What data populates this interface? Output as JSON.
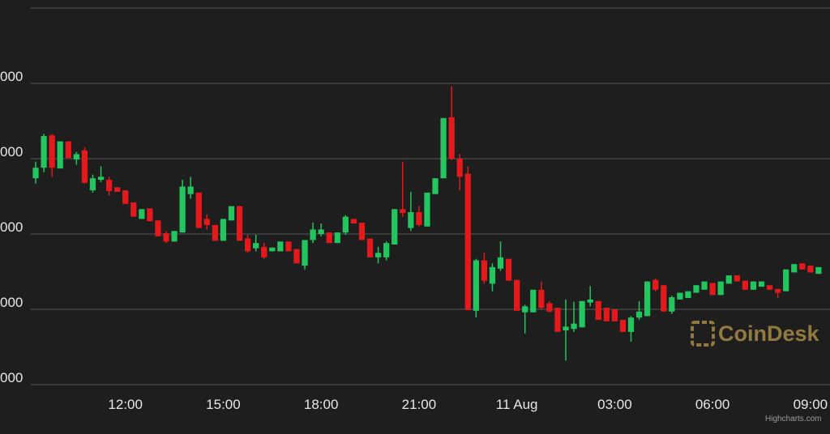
{
  "chart_data": {
    "type": "candlestick",
    "x": [
      9.25,
      9.5,
      9.75,
      10,
      10.25,
      10.5,
      10.75,
      11,
      11.25,
      11.5,
      11.75,
      12,
      12.25,
      12.5,
      12.75,
      13,
      13.25,
      13.5,
      13.75,
      14,
      14.25,
      14.5,
      14.75,
      15,
      15.25,
      15.5,
      15.75,
      16,
      16.25,
      16.5,
      16.75,
      17,
      17.25,
      17.5,
      17.75,
      18,
      18.25,
      18.5,
      18.75,
      19,
      19.25,
      19.5,
      19.75,
      20,
      20.25,
      20.5,
      20.75,
      21,
      21.25,
      21.5,
      21.75,
      22,
      22.25,
      22.5,
      22.75,
      23,
      23.25,
      23.5,
      23.75,
      24,
      24.25,
      24.5,
      24.75,
      25,
      25.25,
      25.5,
      25.75,
      26,
      26.25,
      26.5,
      26.75,
      27,
      27.25,
      27.5,
      27.75,
      28,
      28.25,
      28.5,
      28.75,
      29,
      29.25,
      29.5,
      29.75,
      30,
      30.25,
      30.5,
      30.75,
      31,
      31.25,
      31.5,
      31.75,
      32,
      32.25,
      32.5,
      32.75,
      33,
      33.25
    ],
    "open": [
      29474,
      29488,
      29531,
      29487,
      29523,
      29499,
      29511,
      29458,
      29472,
      29472,
      29462,
      29458,
      29442,
      29420,
      29434,
      29418,
      29401,
      29390,
      29402,
      29453,
      29455,
      29420,
      29412,
      29391,
      29418,
      29437,
      29394,
      29381,
      29383,
      29377,
      29377,
      29390,
      29380,
      29358,
      29392,
      29400,
      29402,
      29388,
      29402,
      29420,
      29415,
      29394,
      29369,
      29369,
      29386,
      29433,
      29408,
      29429,
      29410,
      29453,
      29474,
      29555,
      29500,
      29480,
      29298,
      29365,
      29334,
      29354,
      29367,
      29339,
      29296,
      29296,
      29326,
      29308,
      29302,
      29272,
      29274,
      29276,
      29309,
      29311,
      29302,
      29300,
      29286,
      29270,
      29289,
      29291,
      29339,
      29332,
      29297,
      29313,
      29315,
      29322,
      29326,
      29335,
      29319,
      29334,
      29345,
      29338,
      29326,
      29330,
      29332,
      29327,
      29324,
      29349,
      29361,
      29358,
      29347
    ],
    "high": [
      29496,
      29533,
      29533,
      29523,
      29523,
      29509,
      29515,
      29479,
      29490,
      29476,
      29462,
      29458,
      29442,
      29433,
      29434,
      29418,
      29404,
      29404,
      29472,
      29476,
      29455,
      29426,
      29412,
      29420,
      29437,
      29437,
      29399,
      29399,
      29388,
      29382,
      29390,
      29390,
      29380,
      29392,
      29415,
      29414,
      29402,
      29402,
      29425,
      29420,
      29415,
      29394,
      29383,
      29390,
      29433,
      29496,
      29456,
      29437,
      29455,
      29474,
      29554,
      29596,
      29506,
      29490,
      29367,
      29375,
      29361,
      29390,
      29367,
      29339,
      29306,
      29326,
      29337,
      29311,
      29302,
      29313,
      29310,
      29311,
      29331,
      29311,
      29302,
      29300,
      29286,
      29291,
      29311,
      29337,
      29341,
      29332,
      29318,
      29322,
      29324,
      29332,
      29337,
      29335,
      29337,
      29345,
      29345,
      29338,
      29337,
      29337,
      29332,
      29327,
      29353,
      29360,
      29361,
      29358,
      29356
    ],
    "low": [
      29467,
      29482,
      29476,
      29487,
      29501,
      29492,
      29467,
      29455,
      29469,
      29451,
      29456,
      29440,
      29423,
      29420,
      29417,
      29397,
      29388,
      29390,
      29402,
      29447,
      29408,
      29406,
      29391,
      29391,
      29418,
      29391,
      29375,
      29377,
      29367,
      29377,
      29377,
      29377,
      29361,
      29353,
      29388,
      29397,
      29388,
      29388,
      29399,
      29414,
      29392,
      29369,
      29361,
      29365,
      29386,
      29423,
      29404,
      29410,
      29410,
      29453,
      29474,
      29498,
      29458,
      29299,
      29289,
      29334,
      29324,
      29351,
      29338,
      29298,
      29268,
      29296,
      29300,
      29296,
      29270,
      29232,
      29270,
      29276,
      29304,
      29286,
      29284,
      29284,
      29270,
      29257,
      29286,
      29291,
      29324,
      29297,
      29294,
      29313,
      29315,
      29322,
      29326,
      29319,
      29319,
      29334,
      29337,
      29326,
      29326,
      29330,
      29326,
      29315,
      29324,
      29349,
      29353,
      29349,
      29347
    ],
    "close": [
      29488,
      29530,
      29488,
      29523,
      29501,
      29506,
      29468,
      29474,
      29476,
      29457,
      29456,
      29440,
      29423,
      29433,
      29417,
      29397,
      29390,
      29404,
      29463,
      29463,
      29408,
      29412,
      29391,
      29420,
      29437,
      29391,
      29377,
      29388,
      29369,
      29382,
      29390,
      29377,
      29361,
      29392,
      29406,
      29406,
      29388,
      29402,
      29423,
      29414,
      29392,
      29369,
      29375,
      29388,
      29433,
      29428,
      29429,
      29412,
      29455,
      29474,
      29554,
      29500,
      29476,
      29299,
      29365,
      29338,
      29356,
      29369,
      29338,
      29298,
      29304,
      29326,
      29302,
      29297,
      29270,
      29277,
      29281,
      29311,
      29313,
      29286,
      29284,
      29284,
      29270,
      29289,
      29297,
      29337,
      29326,
      29297,
      29316,
      29322,
      29324,
      29332,
      29337,
      29319,
      29337,
      29345,
      29337,
      29326,
      29337,
      29337,
      29326,
      29322,
      29353,
      29360,
      29353,
      29349,
      29356
    ],
    "up_color": "#22c55e",
    "down_color": "#e3191c",
    "xlim": [
      9.1,
      33.6
    ],
    "xticks": [
      {
        "value": 12,
        "label": "12:00"
      },
      {
        "value": 15,
        "label": "15:00"
      },
      {
        "value": 18,
        "label": "18:00"
      },
      {
        "value": 21,
        "label": "21:00"
      },
      {
        "value": 24,
        "label": "11 Aug"
      },
      {
        "value": 27,
        "label": "03:00"
      },
      {
        "value": 30,
        "label": "06:00"
      },
      {
        "value": 33,
        "label": "09:00"
      }
    ],
    "ylim": [
      29200,
      29700
    ],
    "yticks": [
      {
        "value": 29200,
        "label": "000"
      },
      {
        "value": 29300,
        "label": "000"
      },
      {
        "value": 29400,
        "label": "000"
      },
      {
        "value": 29500,
        "label": "000"
      },
      {
        "value": 29600,
        "label": "000"
      }
    ],
    "grid": true,
    "watermark": "CoinDesk",
    "credits": "Highcharts.com"
  }
}
